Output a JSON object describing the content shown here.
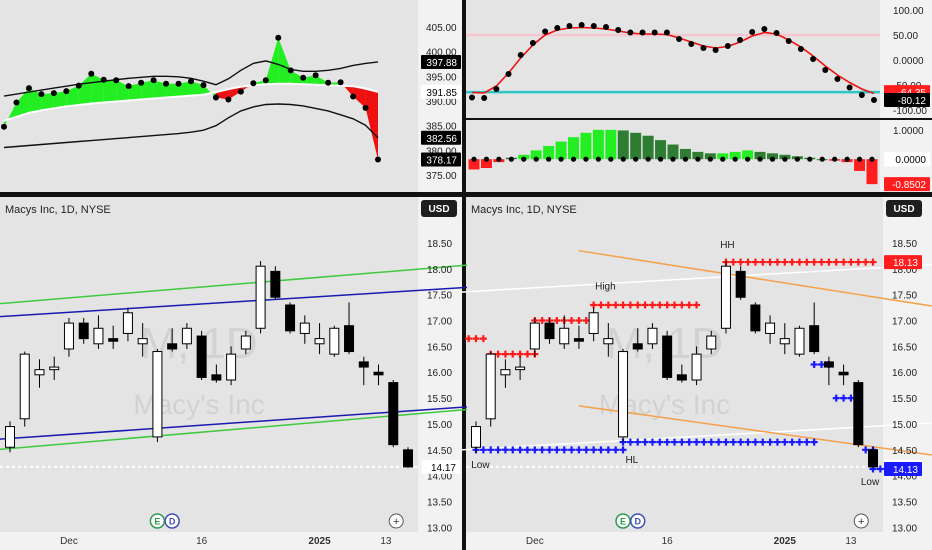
{
  "chart_data": [
    {
      "id": "top-left",
      "type": "line",
      "indicator": "price with bands and cloud",
      "y_ticks": [
        "405.00",
        "400.00",
        "395.00",
        "390.00",
        "385.00",
        "380.00",
        "375.00"
      ],
      "ylim": [
        372,
        408
      ],
      "badges": [
        {
          "text": "397.88",
          "bg": "#000000",
          "fg": "#ffffff",
          "y": 397.88
        },
        {
          "text": "391.85",
          "bg": "#ffffff",
          "fg": "#000000",
          "y": 391.85
        },
        {
          "text": "382.56",
          "bg": "#000000",
          "fg": "#ffffff",
          "y": 382.56
        },
        {
          "text": "378.17",
          "bg": "#000000",
          "fg": "#ffffff",
          "y": 378.17
        }
      ],
      "series": [
        {
          "kind": "upper_band",
          "values": [
            391.0,
            391.4,
            391.8,
            392.2,
            392.6,
            393.0,
            393.4,
            393.7,
            394.0,
            394.3,
            394.6,
            394.8,
            395.0,
            395.0,
            394.9,
            394.6,
            394.0,
            393.3,
            394.5,
            396.2,
            397.6,
            398.1,
            397.4,
            396.4,
            396.0,
            396.0,
            396.2,
            396.6,
            397.2,
            397.6,
            397.9
          ]
        },
        {
          "kind": "lower_band",
          "values": [
            380.6,
            380.8,
            381.0,
            381.2,
            381.4,
            381.6,
            381.8,
            382.0,
            382.2,
            382.4,
            382.6,
            382.8,
            383.0,
            383.2,
            383.4,
            383.7,
            384.1,
            385.0,
            386.6,
            388.0,
            388.8,
            389.3,
            389.4,
            389.3,
            389.0,
            388.5,
            388.0,
            387.2,
            386.4,
            385.1,
            382.56
          ]
        },
        {
          "kind": "baseline",
          "values": [
            386.0,
            386.8,
            387.6,
            388.1,
            388.5,
            388.9,
            389.2,
            389.5,
            389.7,
            389.9,
            390.1,
            390.3,
            390.5,
            390.7,
            390.9,
            391.1,
            391.3,
            391.8,
            392.4,
            392.9,
            393.2,
            393.4,
            393.5,
            393.5,
            393.4,
            393.3,
            393.2,
            393.1,
            393.0,
            392.5,
            391.85
          ]
        },
        {
          "kind": "price",
          "values": [
            384.8,
            389.7,
            392.6,
            391.4,
            391.6,
            392.0,
            393.1,
            395.5,
            394.3,
            394.2,
            393.0,
            393.7,
            394.2,
            393.5,
            393.5,
            394.0,
            393.2,
            390.7,
            390.3,
            391.9,
            393.6,
            394.2,
            402.8,
            396.2,
            394.7,
            395.2,
            393.7,
            393.8,
            390.9,
            388.6,
            378.17
          ]
        }
      ]
    },
    {
      "id": "top-right-upper",
      "type": "line",
      "indicator": "oscillator",
      "y_ticks": [
        "100.00",
        "50.00",
        "0.0000",
        "-50.00",
        "-100.00"
      ],
      "ylim": [
        -108,
        108
      ],
      "levels": [
        {
          "value": 50,
          "color": "#f7c6cf"
        },
        {
          "value": -64.35,
          "color": "#2cc6c6"
        }
      ],
      "badges": [
        {
          "text": "-64.35",
          "bg": "#ff1d1d",
          "fg": "#ffffff",
          "y": -64.35
        },
        {
          "text": "-80.12",
          "bg": "#000000",
          "fg": "#ffffff",
          "y": -80.12
        }
      ],
      "series": [
        {
          "kind": "dots",
          "values": [
            -75,
            -76,
            -58,
            -28,
            10,
            34,
            57,
            64,
            68,
            70,
            68,
            66,
            60,
            55,
            55,
            55,
            55,
            42,
            32,
            24,
            20,
            28,
            40,
            56,
            62,
            54,
            38,
            22,
            2,
            -20,
            -38,
            -55,
            -70,
            -80
          ]
        },
        {
          "kind": "signal_red",
          "values": [
            -65,
            -66,
            -52,
            -26,
            4,
            30,
            50,
            60,
            64,
            65,
            64,
            62,
            58,
            54,
            52,
            52,
            51,
            44,
            36,
            28,
            24,
            27,
            36,
            48,
            55,
            52,
            40,
            26,
            8,
            -12,
            -30,
            -45,
            -58,
            -67
          ]
        }
      ]
    },
    {
      "id": "top-right-lower",
      "type": "bar",
      "indicator": "histogram",
      "y_ticks": [
        "1.0000",
        "0.0000"
      ],
      "ylim": [
        -1.05,
        1.2
      ],
      "badges": [
        {
          "text": "0.0000",
          "bg": "#ffffff",
          "fg": "#000000",
          "y": 0.0
        },
        {
          "text": "-0.8502",
          "bg": "#ff1d1d",
          "fg": "#ffffff",
          "y": -0.8502
        }
      ],
      "values": [
        -0.35,
        -0.3,
        -0.1,
        0.05,
        0.15,
        0.3,
        0.45,
        0.6,
        0.75,
        0.9,
        1.0,
        1.0,
        0.98,
        0.9,
        0.8,
        0.65,
        0.5,
        0.35,
        0.25,
        0.2,
        0.2,
        0.25,
        0.3,
        0.25,
        0.2,
        0.15,
        0.1,
        0.05,
        0.0,
        -0.05,
        -0.1,
        -0.4,
        -0.85
      ]
    },
    {
      "id": "bottom-left",
      "type": "candlestick",
      "title": "Macys Inc, 1D, NYSE",
      "currency": "USD",
      "watermark_main": "M, 1D",
      "watermark_sub": "Macy's Inc",
      "y_ticks": [
        "18.50",
        "18.00",
        "17.50",
        "17.00",
        "16.50",
        "16.00",
        "15.50",
        "15.00",
        "14.50",
        "14.00",
        "13.50",
        "13.00"
      ],
      "ylim": [
        12.95,
        18.75
      ],
      "x_labels": [
        {
          "text": "Dec",
          "i": 4
        },
        {
          "text": "16",
          "i": 13
        },
        {
          "text": "2025",
          "i": 21
        },
        {
          "text": "13",
          "i": 25.5
        }
      ],
      "last_price": {
        "text": "14.17",
        "value": 14.17
      },
      "event_badges": [
        {
          "text": "E",
          "i": 10
        },
        {
          "text": "D",
          "i": 11
        }
      ],
      "candles": [
        {
          "o": 14.55,
          "h": 15.05,
          "l": 14.45,
          "c": 14.95
        },
        {
          "o": 15.1,
          "h": 16.4,
          "l": 14.95,
          "c": 16.35
        },
        {
          "o": 15.95,
          "h": 16.25,
          "l": 15.7,
          "c": 16.05
        },
        {
          "o": 16.05,
          "h": 16.3,
          "l": 15.85,
          "c": 16.1
        },
        {
          "o": 16.45,
          "h": 17.05,
          "l": 16.3,
          "c": 16.95
        },
        {
          "o": 16.95,
          "h": 17.05,
          "l": 16.55,
          "c": 16.65
        },
        {
          "o": 16.55,
          "h": 17.1,
          "l": 16.45,
          "c": 16.85
        },
        {
          "o": 16.65,
          "h": 16.9,
          "l": 16.45,
          "c": 16.6
        },
        {
          "o": 16.75,
          "h": 17.25,
          "l": 16.6,
          "c": 17.15
        },
        {
          "o": 16.55,
          "h": 16.95,
          "l": 16.3,
          "c": 16.65
        },
        {
          "o": 14.75,
          "h": 16.45,
          "l": 14.65,
          "c": 16.4
        },
        {
          "o": 16.55,
          "h": 16.85,
          "l": 16.4,
          "c": 16.45
        },
        {
          "o": 16.55,
          "h": 16.95,
          "l": 16.45,
          "c": 16.85
        },
        {
          "o": 16.7,
          "h": 16.8,
          "l": 15.85,
          "c": 15.9
        },
        {
          "o": 15.95,
          "h": 16.15,
          "l": 15.8,
          "c": 15.85
        },
        {
          "o": 15.85,
          "h": 16.5,
          "l": 15.75,
          "c": 16.35
        },
        {
          "o": 16.45,
          "h": 16.8,
          "l": 16.35,
          "c": 16.7
        },
        {
          "o": 16.85,
          "h": 18.15,
          "l": 16.75,
          "c": 18.05
        },
        {
          "o": 17.95,
          "h": 18.05,
          "l": 17.4,
          "c": 17.45
        },
        {
          "o": 17.3,
          "h": 17.35,
          "l": 16.75,
          "c": 16.8
        },
        {
          "o": 16.75,
          "h": 17.1,
          "l": 16.55,
          "c": 16.95
        },
        {
          "o": 16.55,
          "h": 16.95,
          "l": 16.35,
          "c": 16.65
        },
        {
          "o": 16.35,
          "h": 16.9,
          "l": 16.3,
          "c": 16.85
        },
        {
          "o": 16.9,
          "h": 17.35,
          "l": 16.35,
          "c": 16.4
        },
        {
          "o": 16.2,
          "h": 16.3,
          "l": 15.75,
          "c": 16.1
        },
        {
          "o": 16.0,
          "h": 16.15,
          "l": 15.75,
          "c": 15.95
        },
        {
          "o": 15.8,
          "h": 15.85,
          "l": 14.55,
          "c": 14.6
        },
        {
          "o": 14.5,
          "h": 14.55,
          "l": 14.15,
          "c": 14.17
        }
      ],
      "lines": [
        {
          "name": "upper green",
          "color": "#3fc93f",
          "from": [
            -1,
            17.32
          ],
          "to": [
            31,
            18.07
          ]
        },
        {
          "name": "upper blue",
          "color": "#1a1ab0",
          "from": [
            -1,
            17.07
          ],
          "to": [
            31,
            17.64
          ]
        },
        {
          "name": "lower blue",
          "color": "#1a1ab0",
          "from": [
            -1,
            14.7
          ],
          "to": [
            31,
            15.33
          ]
        },
        {
          "name": "lower green",
          "color": "#3fc93f",
          "from": [
            -1,
            14.5
          ],
          "to": [
            31,
            15.28
          ]
        }
      ]
    },
    {
      "id": "bottom-right",
      "type": "candlestick",
      "title": "Macys Inc, 1D, NYSE",
      "currency": "USD",
      "watermark_main": "M, 1D",
      "watermark_sub": "Macy's Inc",
      "y_ticks": [
        "18.50",
        "18.00",
        "17.50",
        "17.00",
        "16.50",
        "16.00",
        "15.50",
        "15.00",
        "14.50",
        "14.00",
        "13.50",
        "13.00"
      ],
      "ylim": [
        12.95,
        18.75
      ],
      "x_labels": [
        {
          "text": "Dec",
          "i": 4
        },
        {
          "text": "16",
          "i": 13
        },
        {
          "text": "2025",
          "i": 21
        },
        {
          "text": "13",
          "i": 25.5
        }
      ],
      "last_price": {
        "text": "14.17",
        "value": 14.17
      },
      "badges": [
        {
          "text": "18.13",
          "bg": "#ff1d1d",
          "fg": "#ffffff",
          "y": 18.13
        },
        {
          "text": "14.13",
          "bg": "#1a1aff",
          "fg": "#ffffff",
          "y": 14.13
        }
      ],
      "event_badges": [
        {
          "text": "E",
          "i": 10
        },
        {
          "text": "D",
          "i": 11
        }
      ],
      "annotations": [
        {
          "text": "Low",
          "i": 0.3,
          "y": 14.15
        },
        {
          "text": "High",
          "i": 8.8,
          "y": 17.6
        },
        {
          "text": "HL",
          "i": 10.6,
          "y": 14.25
        },
        {
          "text": "HH",
          "i": 17.1,
          "y": 18.4
        },
        {
          "text": "Low",
          "i": 26.8,
          "y": 13.82
        }
      ],
      "candles": [
        {
          "o": 14.55,
          "h": 15.05,
          "l": 14.45,
          "c": 14.95
        },
        {
          "o": 15.1,
          "h": 16.4,
          "l": 14.95,
          "c": 16.35
        },
        {
          "o": 15.95,
          "h": 16.25,
          "l": 15.7,
          "c": 16.05
        },
        {
          "o": 16.05,
          "h": 16.3,
          "l": 15.85,
          "c": 16.1
        },
        {
          "o": 16.45,
          "h": 17.05,
          "l": 16.3,
          "c": 16.95
        },
        {
          "o": 16.95,
          "h": 17.05,
          "l": 16.55,
          "c": 16.65
        },
        {
          "o": 16.55,
          "h": 17.1,
          "l": 16.45,
          "c": 16.85
        },
        {
          "o": 16.65,
          "h": 16.9,
          "l": 16.45,
          "c": 16.6
        },
        {
          "o": 16.75,
          "h": 17.25,
          "l": 16.6,
          "c": 17.15
        },
        {
          "o": 16.55,
          "h": 16.95,
          "l": 16.3,
          "c": 16.65
        },
        {
          "o": 14.75,
          "h": 16.45,
          "l": 14.65,
          "c": 16.4
        },
        {
          "o": 16.55,
          "h": 16.85,
          "l": 16.4,
          "c": 16.45
        },
        {
          "o": 16.55,
          "h": 16.95,
          "l": 16.45,
          "c": 16.85
        },
        {
          "o": 16.7,
          "h": 16.8,
          "l": 15.85,
          "c": 15.9
        },
        {
          "o": 15.95,
          "h": 16.15,
          "l": 15.8,
          "c": 15.85
        },
        {
          "o": 15.85,
          "h": 16.5,
          "l": 15.75,
          "c": 16.35
        },
        {
          "o": 16.45,
          "h": 16.8,
          "l": 16.35,
          "c": 16.7
        },
        {
          "o": 16.85,
          "h": 18.15,
          "l": 16.75,
          "c": 18.05
        },
        {
          "o": 17.95,
          "h": 18.05,
          "l": 17.4,
          "c": 17.45
        },
        {
          "o": 17.3,
          "h": 17.35,
          "l": 16.75,
          "c": 16.8
        },
        {
          "o": 16.75,
          "h": 17.1,
          "l": 16.55,
          "c": 16.95
        },
        {
          "o": 16.55,
          "h": 16.95,
          "l": 16.35,
          "c": 16.65
        },
        {
          "o": 16.35,
          "h": 16.9,
          "l": 16.3,
          "c": 16.85
        },
        {
          "o": 16.9,
          "h": 17.35,
          "l": 16.35,
          "c": 16.4
        },
        {
          "o": 16.2,
          "h": 16.3,
          "l": 15.75,
          "c": 16.1
        },
        {
          "o": 16.0,
          "h": 16.15,
          "l": 15.75,
          "c": 15.95
        },
        {
          "o": 15.8,
          "h": 15.85,
          "l": 14.55,
          "c": 14.6
        },
        {
          "o": 14.5,
          "h": 14.55,
          "l": 14.15,
          "c": 14.17
        }
      ],
      "lines": [
        {
          "name": "white upper",
          "color": "#ffffff",
          "from": [
            -1,
            17.55
          ],
          "to": [
            31,
            18.08
          ]
        },
        {
          "name": "white lower",
          "color": "#ffffff",
          "from": [
            -1,
            14.5
          ],
          "to": [
            31,
            15.02
          ]
        },
        {
          "name": "orange upper",
          "color": "#f5a04a",
          "from": [
            7,
            18.35
          ],
          "to": [
            31,
            17.28
          ]
        },
        {
          "name": "orange lower",
          "color": "#f5a04a",
          "from": [
            7,
            15.35
          ],
          "to": [
            31,
            14.4
          ]
        }
      ],
      "red_plus": [
        {
          "from": -0.5,
          "to": 0.5,
          "y": 16.65
        },
        {
          "from": 1,
          "to": 4,
          "y": 16.35
        },
        {
          "from": 4,
          "to": 8,
          "y": 17.0
        },
        {
          "from": 8,
          "to": 15,
          "y": 17.3
        },
        {
          "from": 17,
          "to": 27,
          "y": 18.13
        }
      ],
      "blue_plus": [
        {
          "from": 0,
          "to": 10,
          "y": 14.5
        },
        {
          "from": 10,
          "to": 23,
          "y": 14.65
        },
        {
          "from": 23,
          "to": 24,
          "y": 16.15
        },
        {
          "from": 24.5,
          "to": 25.5,
          "y": 15.5
        },
        {
          "from": 26.5,
          "to": 27,
          "y": 14.5
        },
        {
          "from": 27,
          "to": 27.5,
          "y": 14.13
        }
      ]
    }
  ]
}
